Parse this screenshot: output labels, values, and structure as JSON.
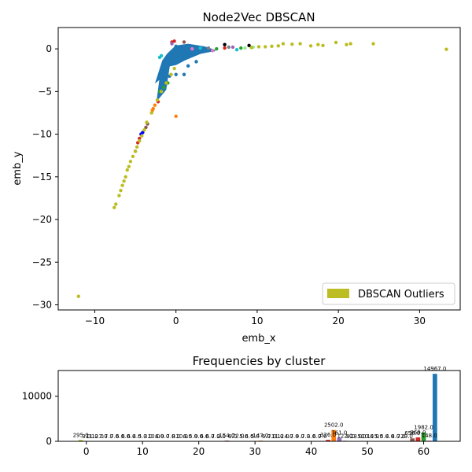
{
  "chart_data": [
    {
      "type": "scatter",
      "title": "Node2Vec DBSCAN",
      "xlabel": "emb_x",
      "ylabel": "emb_y",
      "xlim": [
        -14.5,
        35
      ],
      "ylim": [
        -30.6,
        2.5
      ],
      "xticks": [
        -10,
        0,
        10,
        20,
        30
      ],
      "yticks": [
        0,
        -5,
        -10,
        -15,
        -20,
        -25,
        -30
      ],
      "legend": {
        "label": "DBSCAN Outliers",
        "color": "#bcbd22",
        "position": "lower-right"
      },
      "outlier_points": [
        [
          -12,
          -29
        ],
        [
          33.3,
          -0.05
        ],
        [
          24.3,
          0.6
        ],
        [
          21,
          0.5
        ],
        [
          21.5,
          0.6
        ],
        [
          19.7,
          0.75
        ],
        [
          18.1,
          0.4
        ],
        [
          17.5,
          0.5
        ],
        [
          16.6,
          0.35
        ],
        [
          15.3,
          0.6
        ],
        [
          14.3,
          0.55
        ],
        [
          13.2,
          0.6
        ],
        [
          12.6,
          0.35
        ],
        [
          11.8,
          0.3
        ],
        [
          11,
          0.25
        ],
        [
          10.2,
          0.25
        ],
        [
          9.3,
          0.15
        ],
        [
          -7.6,
          -18.6
        ],
        [
          -7.4,
          -18.2
        ],
        [
          -7.0,
          -17.2
        ],
        [
          -6.8,
          -16.6
        ],
        [
          -6.6,
          -16.0
        ],
        [
          -6.4,
          -15.5
        ],
        [
          -6.2,
          -15.0
        ],
        [
          -6.0,
          -14.2
        ],
        [
          -5.8,
          -13.8
        ],
        [
          -5.6,
          -13.2
        ],
        [
          -5.3,
          -12.6
        ],
        [
          -5.0,
          -12.0
        ],
        [
          -4.8,
          -11.5
        ],
        [
          -4.5,
          -10.8
        ],
        [
          -4.2,
          -10.2
        ],
        [
          -3.9,
          -9.5
        ],
        [
          -3.6,
          -8.6
        ],
        [
          -3.0,
          -7.5
        ],
        [
          -2.3,
          -6.0
        ],
        [
          -1.8,
          -5.0
        ],
        [
          -1.2,
          -4.0
        ],
        [
          -0.6,
          -3.0
        ],
        [
          -0.2,
          -2.3
        ]
      ],
      "cluster_points": [
        {
          "color": "#1f77b4",
          "points": [
            [
              -1,
              -2
            ],
            [
              -0.5,
              -1
            ],
            [
              0,
              -1.5
            ],
            [
              1,
              -1
            ],
            [
              2,
              -0.5
            ],
            [
              0,
              -3
            ],
            [
              -0.8,
              -3.2
            ],
            [
              3,
              -0.3
            ],
            [
              1.5,
              -2
            ],
            [
              0.5,
              0
            ],
            [
              4,
              -0.2
            ],
            [
              -1.5,
              -3.5
            ],
            [
              2.5,
              -1.5
            ],
            [
              1,
              -3
            ],
            [
              0,
              0.3
            ]
          ]
        },
        {
          "color": "#ff7f0e",
          "points": [
            [
              -3,
              -7.5
            ],
            [
              -2.8,
              -7
            ],
            [
              -2.6,
              -6.6
            ],
            [
              -2.9,
              -7.2
            ],
            [
              0,
              -7.9
            ]
          ]
        },
        {
          "color": "#2ca02c",
          "points": [
            [
              -1.5,
              -4.5
            ],
            [
              -1,
              -4
            ],
            [
              5,
              0
            ],
            [
              8,
              0.1
            ],
            [
              -2,
              -5
            ]
          ]
        },
        {
          "color": "#d62728",
          "points": [
            [
              -4.5,
              -10.5
            ],
            [
              -4.7,
              -11
            ],
            [
              -2.2,
              -6.2
            ],
            [
              -0.5,
              0.8
            ],
            [
              -0.2,
              0.9
            ],
            [
              6,
              0.1
            ]
          ]
        },
        {
          "color": "#9467bd",
          "points": [
            [
              -5,
              -12
            ],
            [
              -0.5,
              0.6
            ],
            [
              7,
              0.2
            ]
          ]
        },
        {
          "color": "#0000ff",
          "points": [
            [
              -4.3,
              -10
            ],
            [
              -4.1,
              -9.8
            ]
          ]
        },
        {
          "color": "#17becf",
          "points": [
            [
              -1.8,
              -0.8
            ],
            [
              -2,
              -1
            ],
            [
              3,
              0.1
            ],
            [
              7.5,
              -0.1
            ]
          ]
        },
        {
          "color": "#e377c2",
          "points": [
            [
              2,
              0
            ],
            [
              4.5,
              -0.2
            ]
          ]
        },
        {
          "color": "#8c564b",
          "points": [
            [
              -3.5,
              -8.8
            ],
            [
              -3.7,
              -9.2
            ],
            [
              1,
              0.8
            ]
          ]
        },
        {
          "color": "#7f7f7f",
          "points": [
            [
              4,
              0.1
            ],
            [
              6.5,
              0.2
            ]
          ]
        },
        {
          "color": "#000000",
          "points": [
            [
              6,
              0.5
            ],
            [
              9,
              0.4
            ]
          ]
        },
        {
          "color": "#90ee90",
          "points": [
            [
              8.5,
              0.1
            ],
            [
              9.5,
              0.2
            ]
          ]
        }
      ]
    },
    {
      "type": "bar",
      "title": "Frequencies by cluster",
      "xlim": [
        -5,
        66.5
      ],
      "ylim": [
        0,
        15700
      ],
      "xticks": [
        0,
        10,
        20,
        30,
        40,
        50,
        60
      ],
      "yticks": [
        0,
        10000
      ],
      "bars": [
        {
          "cluster": -1,
          "value": 295,
          "label": "295.0",
          "color": "#bcbd22"
        },
        {
          "cluster": 0,
          "value": 3,
          "label": "3.0",
          "color": "#1f77b4"
        },
        {
          "cluster": 1,
          "value": 11,
          "label": "11.0",
          "color": "#ff7f0e"
        },
        {
          "cluster": 2,
          "value": 12,
          "label": "12.0",
          "color": "#2ca02c"
        },
        {
          "cluster": 3,
          "value": 7,
          "label": "7.0",
          "color": "#d62728"
        },
        {
          "cluster": 4,
          "value": 7,
          "label": "7.0",
          "color": "#9467bd"
        },
        {
          "cluster": 5,
          "value": 7,
          "label": "7.0",
          "color": "#8c564b"
        },
        {
          "cluster": 6,
          "value": 6,
          "label": "6.0",
          "color": "#e377c2"
        },
        {
          "cluster": 7,
          "value": 6,
          "label": "6.0",
          "color": "#7f7f7f"
        },
        {
          "cluster": 8,
          "value": 6,
          "label": "6.0",
          "color": "#bcbd22"
        },
        {
          "cluster": 9,
          "value": 4,
          "label": "4.0",
          "color": "#17becf"
        },
        {
          "cluster": 10,
          "value": 5,
          "label": "5.0",
          "color": "#1f77b4"
        },
        {
          "cluster": 11,
          "value": 3,
          "label": "3.0",
          "color": "#ff7f0e"
        },
        {
          "cluster": 12,
          "value": 10,
          "label": "10.0",
          "color": "#2ca02c"
        },
        {
          "cluster": 13,
          "value": 6,
          "label": "6.0",
          "color": "#d62728"
        },
        {
          "cluster": 14,
          "value": 9,
          "label": "9.0",
          "color": "#9467bd"
        },
        {
          "cluster": 15,
          "value": 7,
          "label": "7.0",
          "color": "#8c564b"
        },
        {
          "cluster": 16,
          "value": 8,
          "label": "8.0",
          "color": "#e377c2"
        },
        {
          "cluster": 17,
          "value": 10,
          "label": "10.0",
          "color": "#7f7f7f"
        },
        {
          "cluster": 18,
          "value": 6,
          "label": "6.0",
          "color": "#bcbd22"
        },
        {
          "cluster": 19,
          "value": 5,
          "label": "5.0",
          "color": "#17becf"
        },
        {
          "cluster": 20,
          "value": 9,
          "label": "9.0",
          "color": "#1f77b4"
        },
        {
          "cluster": 21,
          "value": 6,
          "label": "6.0",
          "color": "#ff7f0e"
        },
        {
          "cluster": 22,
          "value": 6,
          "label": "6.0",
          "color": "#2ca02c"
        },
        {
          "cluster": 23,
          "value": 7,
          "label": "7.0",
          "color": "#d62728"
        },
        {
          "cluster": 24,
          "value": 2,
          "label": "2.0",
          "color": "#9467bd"
        },
        {
          "cluster": 25,
          "value": 154,
          "label": "154.0",
          "color": "#8c564b"
        },
        {
          "cluster": 26,
          "value": 6,
          "label": "6.0",
          "color": "#e377c2"
        },
        {
          "cluster": 27,
          "value": 72,
          "label": "72.0",
          "color": "#7f7f7f"
        },
        {
          "cluster": 28,
          "value": 5,
          "label": "5.0",
          "color": "#bcbd22"
        },
        {
          "cluster": 29,
          "value": 6,
          "label": "6.0",
          "color": "#17becf"
        },
        {
          "cluster": 30,
          "value": 5,
          "label": "5.0",
          "color": "#1f77b4"
        },
        {
          "cluster": 31,
          "value": 147,
          "label": "147.0",
          "color": "#ff7f0e"
        },
        {
          "cluster": 32,
          "value": 6,
          "label": "6.0",
          "color": "#2ca02c"
        },
        {
          "cluster": 33,
          "value": 7,
          "label": "7.0",
          "color": "#d62728"
        },
        {
          "cluster": 34,
          "value": 11,
          "label": "11.0",
          "color": "#9467bd"
        },
        {
          "cluster": 35,
          "value": 12,
          "label": "12.0",
          "color": "#8c564b"
        },
        {
          "cluster": 36,
          "value": 4,
          "label": "4.0",
          "color": "#e377c2"
        },
        {
          "cluster": 37,
          "value": 7,
          "label": "7.0",
          "color": "#7f7f7f"
        },
        {
          "cluster": 38,
          "value": 9,
          "label": "9.0",
          "color": "#bcbd22"
        },
        {
          "cluster": 39,
          "value": 7,
          "label": "7.0",
          "color": "#17becf"
        },
        {
          "cluster": 40,
          "value": 3,
          "label": "3.0",
          "color": "#1f77b4"
        },
        {
          "cluster": 41,
          "value": 6,
          "label": "6.0",
          "color": "#ff7f0e"
        },
        {
          "cluster": 42,
          "value": 7,
          "label": "7.0",
          "color": "#2ca02c"
        },
        {
          "cluster": 43,
          "value": 326,
          "label": "326.0",
          "color": "#d62728"
        },
        {
          "cluster": 44,
          "value": 2502,
          "label": "2502.0",
          "color": "#ff7f0e"
        },
        {
          "cluster": 45,
          "value": 761,
          "label": "761.0",
          "color": "#9467bd"
        },
        {
          "cluster": 46,
          "value": 122,
          "label": "122.0",
          "color": "#8c564b"
        },
        {
          "cluster": 47,
          "value": 8,
          "label": "8.0",
          "color": "#e377c2"
        },
        {
          "cluster": 48,
          "value": 13,
          "label": "13.0",
          "color": "#7f7f7f"
        },
        {
          "cluster": 49,
          "value": 5,
          "label": "5.0",
          "color": "#bcbd22"
        },
        {
          "cluster": 50,
          "value": 10,
          "label": "10.0",
          "color": "#17becf"
        },
        {
          "cluster": 51,
          "value": 14,
          "label": "14.0",
          "color": "#1f77b4"
        },
        {
          "cluster": 52,
          "value": 5,
          "label": "5.0",
          "color": "#ff7f0e"
        },
        {
          "cluster": 53,
          "value": 5,
          "label": "5.0",
          "color": "#2ca02c"
        },
        {
          "cluster": 54,
          "value": 4,
          "label": "4.0",
          "color": "#d62728"
        },
        {
          "cluster": 55,
          "value": 8,
          "label": "8.0",
          "color": "#9467bd"
        },
        {
          "cluster": 56,
          "value": 7,
          "label": "7.0",
          "color": "#8c564b"
        },
        {
          "cluster": 57,
          "value": 29,
          "label": "29.0",
          "color": "#e377c2"
        },
        {
          "cluster": 58,
          "value": 656,
          "label": "656.0",
          "color": "#8c564b"
        },
        {
          "cluster": 59,
          "value": 869,
          "label": "869.0",
          "color": "#d62728"
        },
        {
          "cluster": 60,
          "value": 1982,
          "label": "1982.0",
          "color": "#2ca02c"
        },
        {
          "cluster": 61,
          "value": 148,
          "label": "148.0",
          "color": "#e377c2"
        },
        {
          "cluster": 62,
          "value": 14967,
          "label": "14967.0",
          "color": "#1f77b4"
        }
      ]
    }
  ]
}
